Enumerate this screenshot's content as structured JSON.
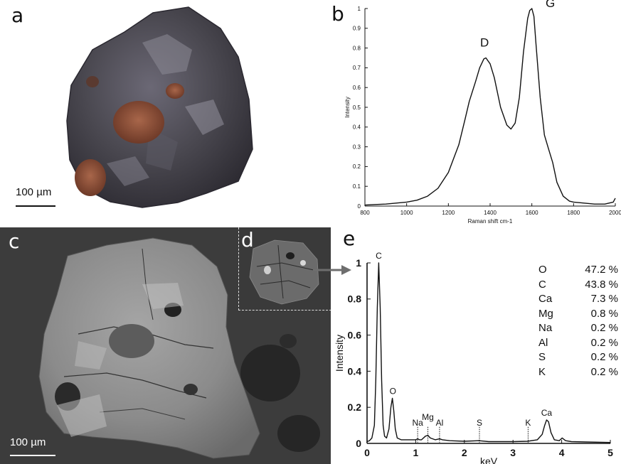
{
  "panels": {
    "a": {
      "letter": "a",
      "scale_bar": "100 µm"
    },
    "b": {
      "letter": "b"
    },
    "c": {
      "letter": "c",
      "scale_bar": "100 µm"
    },
    "d": {
      "letter": "d"
    },
    "e": {
      "letter": "e"
    }
  },
  "colors": {
    "background": "#ffffff",
    "line": "#111111",
    "sem_background": "#3c3c3c",
    "particle_gray": "#8b8b8b",
    "grain_dark": "#4a4850",
    "grain_inclusion": "#8a4a35"
  },
  "chart_data": [
    {
      "type": "line",
      "panel": "b",
      "xlabel": "Raman shift cm-1",
      "ylabel": "Intensity",
      "xlim": [
        800,
        2000
      ],
      "ylim": [
        0,
        1
      ],
      "xticks": [
        "800",
        "1000",
        "1200",
        "1400",
        "1600",
        "1800",
        "2000"
      ],
      "yticks": [
        "0",
        "0.1",
        "0.2",
        "0.3",
        "0.4",
        "0.5",
        "0.6",
        "0.7",
        "0.8",
        "0.9",
        "1"
      ],
      "series": [
        {
          "x": [
            800,
            850,
            900,
            950,
            1000,
            1050,
            1100,
            1150,
            1200,
            1250,
            1280,
            1300,
            1330,
            1350,
            1370,
            1380,
            1400,
            1420,
            1450,
            1480,
            1500,
            1520,
            1540,
            1560,
            1580,
            1590,
            1600,
            1610,
            1620,
            1640,
            1660,
            1680,
            1700,
            1720,
            1750,
            1780,
            1800,
            1850,
            1900,
            1950,
            1990,
            2000
          ],
          "y": [
            0.005,
            0.008,
            0.01,
            0.015,
            0.02,
            0.03,
            0.05,
            0.09,
            0.17,
            0.31,
            0.44,
            0.53,
            0.63,
            0.7,
            0.745,
            0.75,
            0.72,
            0.65,
            0.5,
            0.41,
            0.39,
            0.42,
            0.55,
            0.78,
            0.95,
            0.99,
            1.0,
            0.96,
            0.82,
            0.55,
            0.36,
            0.29,
            0.22,
            0.12,
            0.05,
            0.025,
            0.02,
            0.015,
            0.01,
            0.01,
            0.02,
            0.04
          ]
        }
      ],
      "annotations": [
        {
          "text": "D",
          "x": 1380,
          "y": 0.75
        },
        {
          "text": "G",
          "x": 1600,
          "y": 1.0
        }
      ]
    },
    {
      "type": "line",
      "panel": "e",
      "xlabel": "keV",
      "ylabel": "Intensity",
      "xlim": [
        0,
        5
      ],
      "ylim": [
        0,
        1
      ],
      "xticks": [
        "0",
        "1",
        "2",
        "3",
        "4",
        "5"
      ],
      "yticks": [
        "0",
        "0.2",
        "0.4",
        "0.6",
        "0.8",
        "1"
      ],
      "series": [
        {
          "x": [
            0.0,
            0.05,
            0.1,
            0.15,
            0.18,
            0.21,
            0.24,
            0.27,
            0.3,
            0.33,
            0.36,
            0.4,
            0.45,
            0.49,
            0.52,
            0.55,
            0.58,
            0.62,
            0.7,
            0.8,
            0.9,
            1.0,
            1.04,
            1.08,
            1.12,
            1.2,
            1.25,
            1.3,
            1.4,
            1.49,
            1.55,
            1.7,
            2.0,
            2.3,
            2.5,
            3.0,
            3.3,
            3.5,
            3.6,
            3.65,
            3.69,
            3.73,
            3.78,
            3.85,
            3.95,
            4.01,
            4.08,
            4.2,
            4.5,
            5.0
          ],
          "y": [
            0.01,
            0.015,
            0.03,
            0.1,
            0.35,
            0.75,
            1.0,
            0.75,
            0.35,
            0.1,
            0.04,
            0.03,
            0.08,
            0.2,
            0.25,
            0.18,
            0.08,
            0.03,
            0.02,
            0.02,
            0.02,
            0.02,
            0.025,
            0.02,
            0.02,
            0.04,
            0.045,
            0.03,
            0.02,
            0.025,
            0.02,
            0.015,
            0.012,
            0.015,
            0.01,
            0.01,
            0.012,
            0.02,
            0.05,
            0.1,
            0.13,
            0.12,
            0.06,
            0.02,
            0.015,
            0.03,
            0.015,
            0.01,
            0.008,
            0.005
          ]
        }
      ],
      "peak_labels": [
        {
          "text": "C",
          "x": 0.24,
          "y": 1.0,
          "dotted": false
        },
        {
          "text": "O",
          "x": 0.53,
          "y": 0.25,
          "dotted": false
        },
        {
          "text": "Na",
          "x": 1.04,
          "y": 0.025,
          "dotted": true
        },
        {
          "text": "Mg",
          "x": 1.25,
          "y": 0.045,
          "dotted": true
        },
        {
          "text": "Al",
          "x": 1.49,
          "y": 0.025,
          "dotted": true
        },
        {
          "text": "S",
          "x": 2.31,
          "y": 0.015,
          "dotted": true
        },
        {
          "text": "K",
          "x": 3.31,
          "y": 0.012,
          "dotted": true
        },
        {
          "text": "Ca",
          "x": 3.69,
          "y": 0.13,
          "dotted": false
        }
      ],
      "composition": [
        {
          "element": "O",
          "value": "47.2 %"
        },
        {
          "element": "C",
          "value": "43.8 %"
        },
        {
          "element": "Ca",
          "value": "7.3 %"
        },
        {
          "element": "Mg",
          "value": "0.8 %"
        },
        {
          "element": "Na",
          "value": "0.2 %"
        },
        {
          "element": "Al",
          "value": "0.2 %"
        },
        {
          "element": "S",
          "value": "0.2 %"
        },
        {
          "element": "K",
          "value": "0.2 %"
        }
      ]
    }
  ]
}
